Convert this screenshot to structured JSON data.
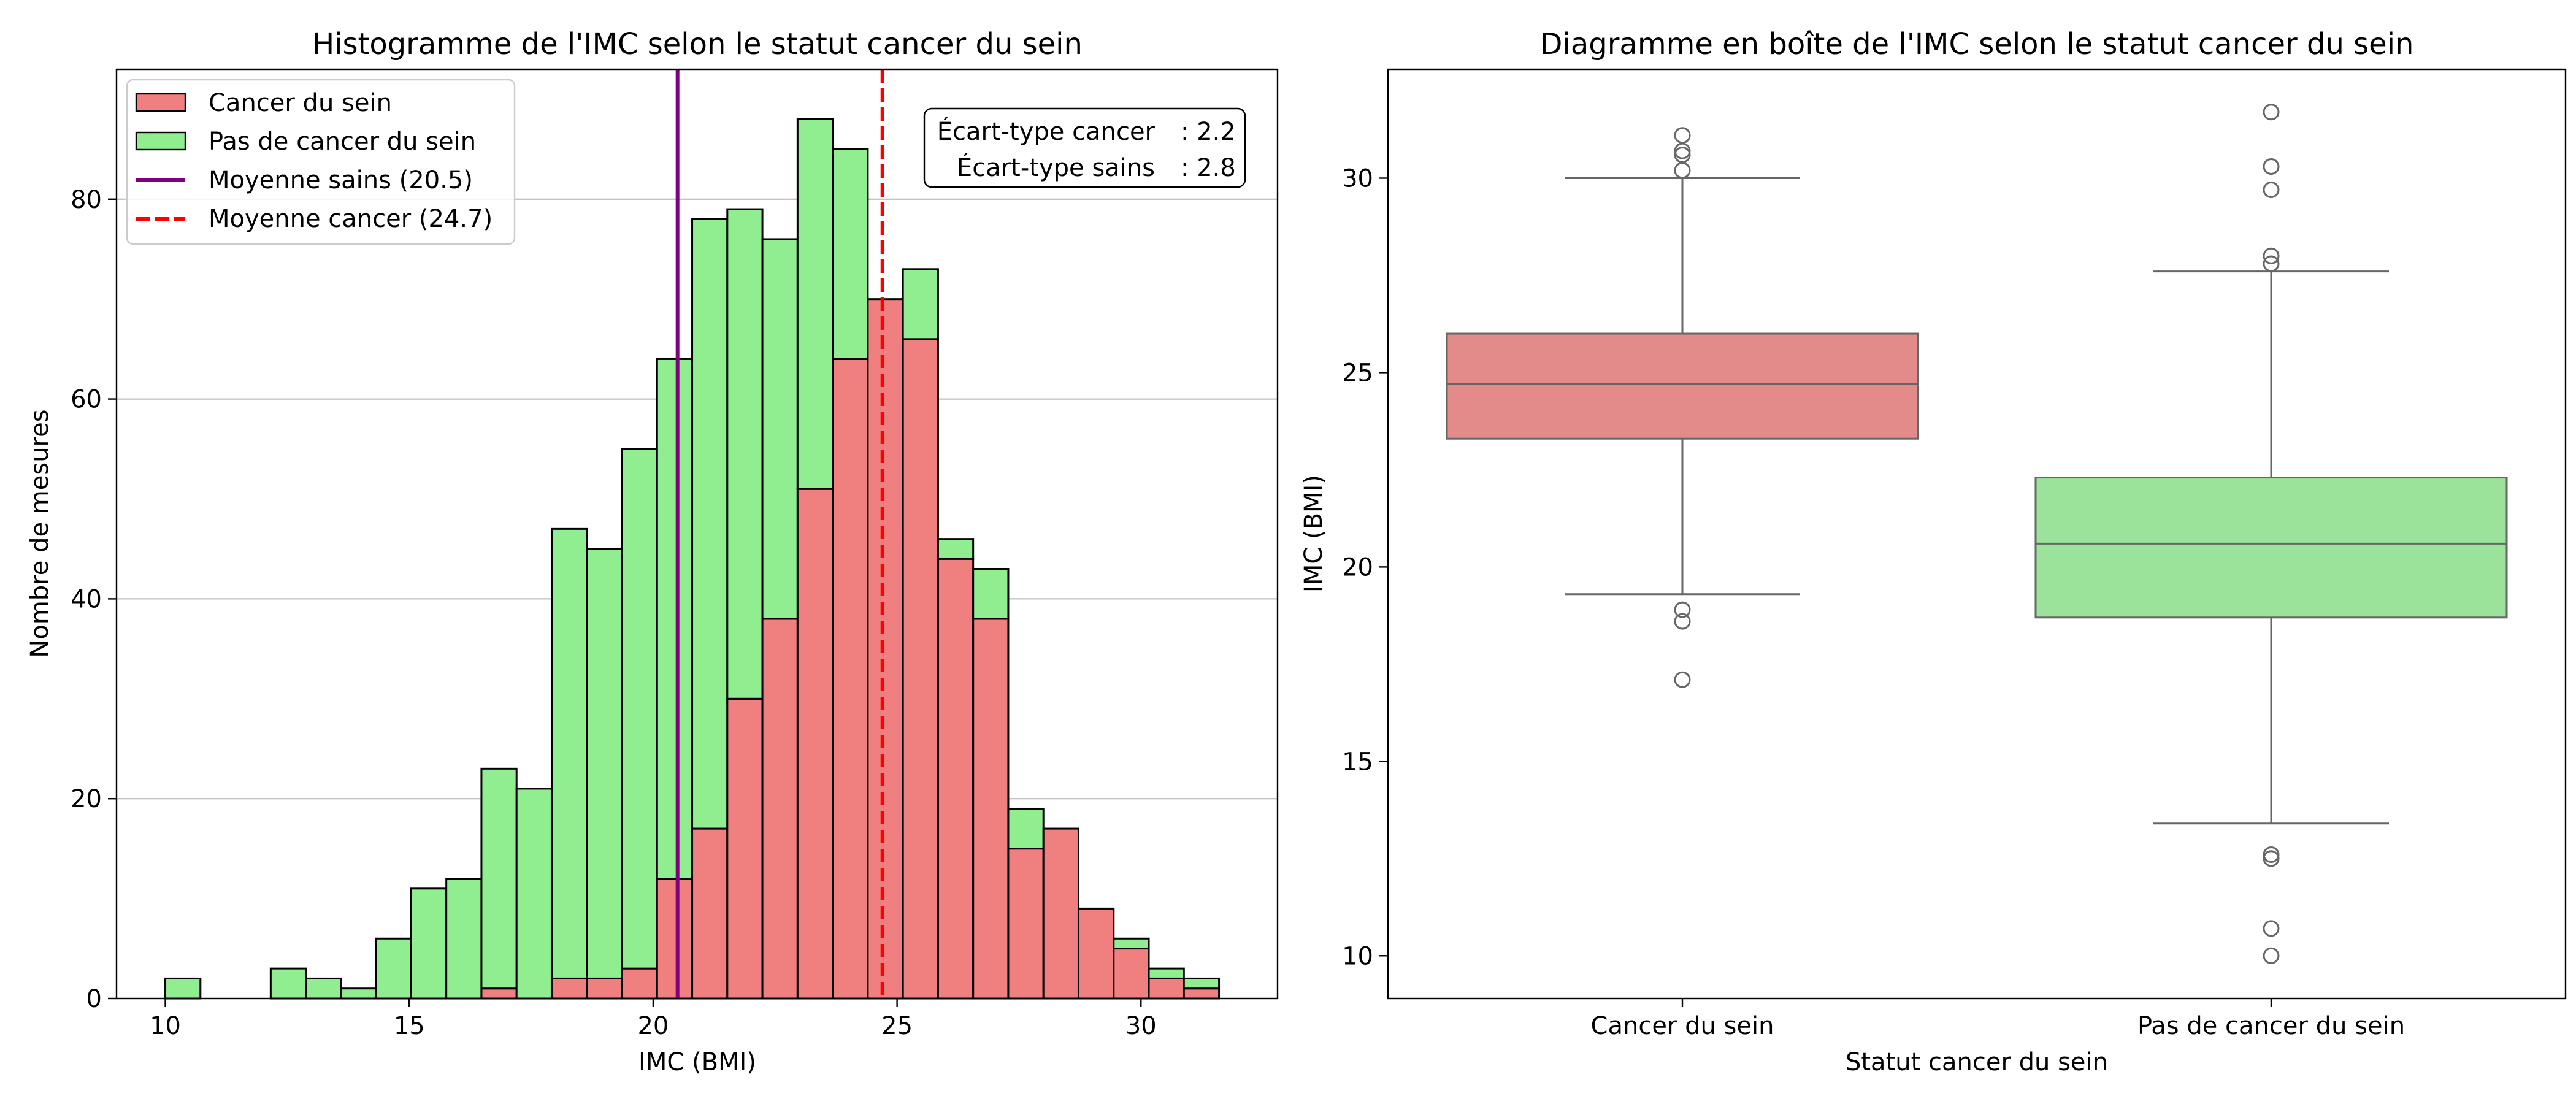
{
  "chart_data": [
    {
      "type": "bar",
      "subtype": "stacked-histogram",
      "title": "Histogramme de l'IMC selon le statut cancer du sein",
      "xlabel": "IMC (BMI)",
      "ylabel": "Nombre de mesures",
      "xlim": [
        9.0,
        32.8
      ],
      "ylim": [
        0,
        93
      ],
      "xticks": [
        10,
        15,
        20,
        25,
        30
      ],
      "yticks": [
        0,
        20,
        40,
        60,
        80
      ],
      "grid": "y",
      "legend_position": "top-left",
      "bin_edges": [
        10.0,
        10.72,
        11.44,
        12.16,
        12.88,
        13.6,
        14.32,
        15.04,
        15.76,
        16.48,
        17.2,
        17.92,
        18.64,
        19.36,
        20.08,
        20.8,
        21.52,
        22.24,
        22.96,
        23.68,
        24.4,
        25.12,
        25.84,
        26.56,
        27.28,
        28.0,
        28.72,
        29.44,
        30.16,
        30.88,
        31.6
      ],
      "series": [
        {
          "name": "Cancer du sein",
          "color": "#f08080",
          "values": [
            0,
            0,
            0,
            0,
            0,
            0,
            0,
            0,
            0,
            1,
            0,
            2,
            2,
            3,
            12,
            17,
            30,
            38,
            51,
            64,
            70,
            66,
            44,
            38,
            15,
            17,
            9,
            5,
            2,
            1
          ]
        },
        {
          "name": "Pas de cancer du sein",
          "color": "#90ee90",
          "values": [
            2,
            0,
            0,
            3,
            2,
            1,
            6,
            11,
            12,
            22,
            21,
            45,
            43,
            52,
            52,
            61,
            49,
            38,
            37,
            21,
            0,
            7,
            2,
            5,
            4,
            0,
            0,
            1,
            1,
            1
          ]
        }
      ],
      "reference_lines": [
        {
          "name": "Moyenne sains (20.5)",
          "x": 20.5,
          "color": "#800080",
          "style": "solid"
        },
        {
          "name": "Moyenne cancer (24.7)",
          "x": 24.7,
          "color": "#ff0000",
          "style": "dashed"
        }
      ],
      "annotation": {
        "lines": [
          {
            "label": "Écart-type cancer",
            "value": ": 2.2"
          },
          {
            "label": "Écart-type sains",
            "value": ": 2.8"
          }
        ]
      }
    },
    {
      "type": "box",
      "title": "Diagramme en boîte de l'IMC selon le statut cancer du sein",
      "xlabel": "Statut cancer du sein",
      "ylabel": "IMC (BMI)",
      "ylim": [
        8.9,
        32.8
      ],
      "yticks": [
        10,
        15,
        20,
        25,
        30
      ],
      "categories": [
        "Cancer du sein",
        "Pas de cancer du sein"
      ],
      "boxes": [
        {
          "category": "Cancer du sein",
          "color": "#e38b8b",
          "whisker_low": 19.3,
          "q1": 23.3,
          "median": 24.7,
          "q3": 26.0,
          "whisker_high": 30.0,
          "outliers": [
            31.1,
            30.7,
            30.6,
            30.2,
            18.9,
            18.6,
            17.1
          ]
        },
        {
          "category": "Pas de cancer du sein",
          "color": "#9be39b",
          "whisker_low": 13.4,
          "q1": 18.7,
          "median": 20.6,
          "q3": 22.3,
          "whisker_high": 27.6,
          "outliers": [
            31.7,
            30.3,
            29.7,
            28.0,
            27.8,
            12.6,
            12.5,
            10.7,
            10.0
          ]
        }
      ]
    }
  ]
}
